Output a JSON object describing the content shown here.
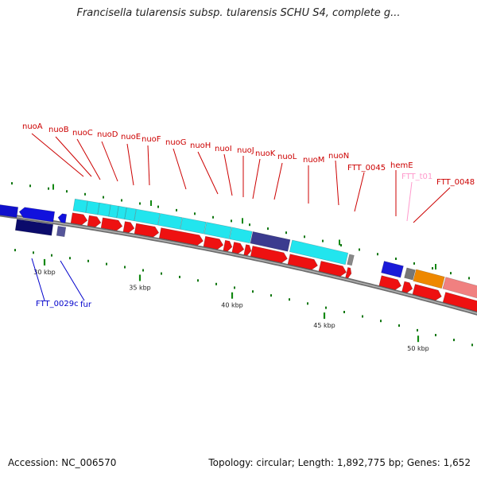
{
  "title": "Francisella tularensis subsp. tularensis SCHU S4, complete g...",
  "footer": {
    "accession": "Accession: NC_006570",
    "info": "Topology: circular; Length: 1,892,775 bp; Genes: 1,652"
  },
  "colors": {
    "backbone": "#888888",
    "cds_forward": "#ee1111",
    "cds_reverse": "#1111dd",
    "gene_band": "#22e5ee",
    "label_top": "#cc0000",
    "label_bottom": "#0000cc",
    "trna": "#ff99cc",
    "tick": "#118811"
  },
  "ticks": [
    {
      "label": "30 kbp"
    },
    {
      "label": "35 kbp"
    },
    {
      "label": "40 kbp"
    },
    {
      "label": "45 kbp"
    },
    {
      "label": "50 kbp"
    }
  ],
  "genes_top": [
    {
      "name": "nuoA"
    },
    {
      "name": "nuoB"
    },
    {
      "name": "nuoC"
    },
    {
      "name": "nuoD"
    },
    {
      "name": "nuoE"
    },
    {
      "name": "nuoF"
    },
    {
      "name": "nuoG"
    },
    {
      "name": "nuoH"
    },
    {
      "name": "nuoI"
    },
    {
      "name": "nuoJ"
    },
    {
      "name": "nuoK"
    },
    {
      "name": "nuoL"
    },
    {
      "name": "nuoM"
    },
    {
      "name": "nuoN"
    },
    {
      "name": "FTT_0045"
    },
    {
      "name": "hemE"
    },
    {
      "name": "FTT_t01"
    },
    {
      "name": "FTT_0048"
    }
  ],
  "genes_bottom": [
    {
      "name": "FTT_0029c"
    },
    {
      "name": "fur"
    }
  ]
}
